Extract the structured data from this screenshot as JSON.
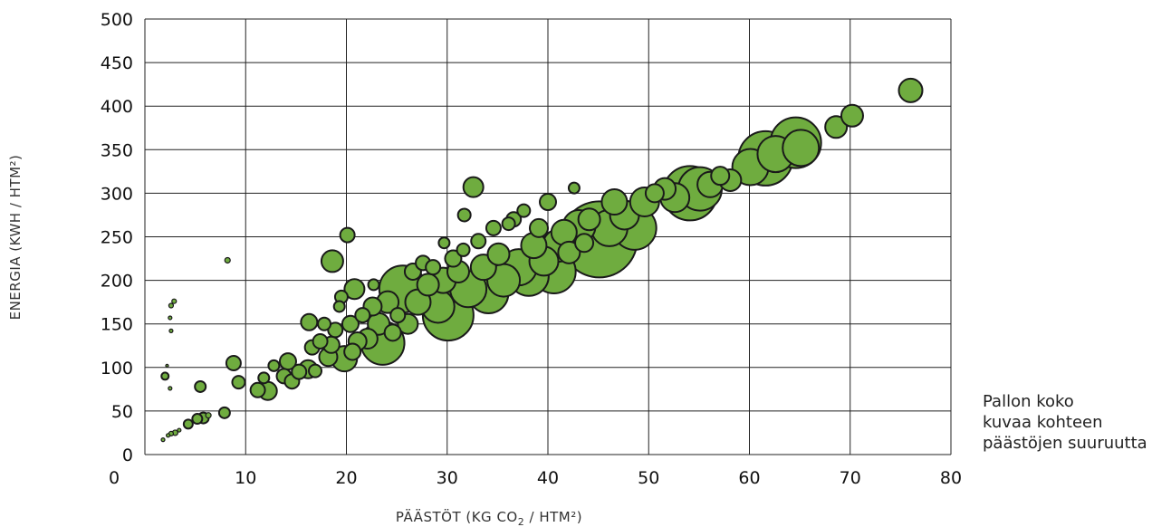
{
  "chart_data": {
    "type": "scatter",
    "title": "",
    "xlabel_main": "PÄÄSTÖT (KG CO",
    "xlabel_sub": "2",
    "xlabel_tail": " / HTM²)",
    "ylabel": "ENERGIA (KWH / HTM²)",
    "xlim": [
      0,
      80
    ],
    "ylim": [
      0,
      500
    ],
    "x_ticks": [
      "0",
      "10",
      "20",
      "30",
      "40",
      "50",
      "60",
      "70",
      "80"
    ],
    "y_ticks": [
      "0",
      "50",
      "100",
      "150",
      "200",
      "250",
      "300",
      "350",
      "400",
      "450",
      "500"
    ],
    "grid": true,
    "size_note": [
      "Pallon koko",
      "kuvaa kohteen",
      "päästöjen suuruutta"
    ],
    "colors": {
      "bubble_fill": "#6fac3f",
      "bubble_stroke": "#1a1a1a",
      "grid": "#222222"
    },
    "series": [
      {
        "points": [
          {
            "x": 1.8,
            "y": 17,
            "s": 2
          },
          {
            "x": 2.3,
            "y": 22,
            "s": 2
          },
          {
            "x": 2.6,
            "y": 24,
            "s": 2.5
          },
          {
            "x": 3.0,
            "y": 25,
            "s": 3
          },
          {
            "x": 3.4,
            "y": 28,
            "s": 2
          },
          {
            "x": 2.0,
            "y": 90,
            "s": 4
          },
          {
            "x": 2.2,
            "y": 102,
            "s": 1.5
          },
          {
            "x": 2.5,
            "y": 76,
            "s": 2
          },
          {
            "x": 2.6,
            "y": 142,
            "s": 2
          },
          {
            "x": 2.5,
            "y": 157,
            "s": 2
          },
          {
            "x": 2.6,
            "y": 171,
            "s": 2.5
          },
          {
            "x": 2.9,
            "y": 176,
            "s": 2.5
          },
          {
            "x": 4.3,
            "y": 35,
            "s": 5
          },
          {
            "x": 5.2,
            "y": 41,
            "s": 5.5
          },
          {
            "x": 5.8,
            "y": 42,
            "s": 6
          },
          {
            "x": 6.3,
            "y": 45,
            "s": 3
          },
          {
            "x": 5.5,
            "y": 78,
            "s": 6
          },
          {
            "x": 7.9,
            "y": 48,
            "s": 6
          },
          {
            "x": 8.2,
            "y": 223,
            "s": 3
          },
          {
            "x": 8.8,
            "y": 105,
            "s": 8
          },
          {
            "x": 9.3,
            "y": 83,
            "s": 7
          },
          {
            "x": 11.2,
            "y": 74,
            "s": 8
          },
          {
            "x": 11.8,
            "y": 88,
            "s": 6
          },
          {
            "x": 12.2,
            "y": 73,
            "s": 10
          },
          {
            "x": 12.8,
            "y": 102,
            "s": 6
          },
          {
            "x": 13.8,
            "y": 90,
            "s": 8
          },
          {
            "x": 14.2,
            "y": 107,
            "s": 9
          },
          {
            "x": 14.6,
            "y": 84,
            "s": 8
          },
          {
            "x": 15.3,
            "y": 95,
            "s": 8
          },
          {
            "x": 16.2,
            "y": 98,
            "s": 10
          },
          {
            "x": 16.3,
            "y": 152,
            "s": 9
          },
          {
            "x": 16.6,
            "y": 123,
            "s": 8
          },
          {
            "x": 16.9,
            "y": 96,
            "s": 7
          },
          {
            "x": 17.4,
            "y": 130,
            "s": 8
          },
          {
            "x": 17.8,
            "y": 150,
            "s": 7
          },
          {
            "x": 18.2,
            "y": 112,
            "s": 10
          },
          {
            "x": 18.5,
            "y": 126,
            "s": 9
          },
          {
            "x": 18.9,
            "y": 143,
            "s": 8
          },
          {
            "x": 18.6,
            "y": 222,
            "s": 12
          },
          {
            "x": 19.3,
            "y": 170,
            "s": 6
          },
          {
            "x": 19.5,
            "y": 181,
            "s": 7
          },
          {
            "x": 19.8,
            "y": 110,
            "s": 14
          },
          {
            "x": 20.1,
            "y": 252,
            "s": 8
          },
          {
            "x": 20.4,
            "y": 150,
            "s": 9
          },
          {
            "x": 20.6,
            "y": 118,
            "s": 9
          },
          {
            "x": 20.8,
            "y": 190,
            "s": 11
          },
          {
            "x": 21.1,
            "y": 130,
            "s": 10
          },
          {
            "x": 21.6,
            "y": 160,
            "s": 8
          },
          {
            "x": 22.1,
            "y": 133,
            "s": 11
          },
          {
            "x": 22.6,
            "y": 170,
            "s": 10
          },
          {
            "x": 22.7,
            "y": 195,
            "s": 6
          },
          {
            "x": 23.2,
            "y": 150,
            "s": 12
          },
          {
            "x": 23.6,
            "y": 128,
            "s": 24
          },
          {
            "x": 24.1,
            "y": 175,
            "s": 12
          },
          {
            "x": 24.6,
            "y": 140,
            "s": 9
          },
          {
            "x": 25.1,
            "y": 160,
            "s": 8
          },
          {
            "x": 25.6,
            "y": 190,
            "s": 26
          },
          {
            "x": 26.1,
            "y": 150,
            "s": 11
          },
          {
            "x": 26.6,
            "y": 210,
            "s": 9
          },
          {
            "x": 27.1,
            "y": 175,
            "s": 14
          },
          {
            "x": 27.6,
            "y": 220,
            "s": 8
          },
          {
            "x": 28.1,
            "y": 195,
            "s": 12
          },
          {
            "x": 28.6,
            "y": 215,
            "s": 8
          },
          {
            "x": 29.1,
            "y": 170,
            "s": 18
          },
          {
            "x": 29.6,
            "y": 200,
            "s": 14
          },
          {
            "x": 30.1,
            "y": 160,
            "s": 28
          },
          {
            "x": 29.7,
            "y": 243,
            "s": 6
          },
          {
            "x": 30.6,
            "y": 225,
            "s": 9
          },
          {
            "x": 31.1,
            "y": 210,
            "s": 12
          },
          {
            "x": 31.6,
            "y": 235,
            "s": 7
          },
          {
            "x": 31.7,
            "y": 275,
            "s": 7
          },
          {
            "x": 32.1,
            "y": 190,
            "s": 20
          },
          {
            "x": 32.6,
            "y": 307,
            "s": 11
          },
          {
            "x": 33.1,
            "y": 245,
            "s": 8
          },
          {
            "x": 33.6,
            "y": 215,
            "s": 14
          },
          {
            "x": 34.1,
            "y": 185,
            "s": 22
          },
          {
            "x": 34.6,
            "y": 260,
            "s": 8
          },
          {
            "x": 35.1,
            "y": 230,
            "s": 12
          },
          {
            "x": 35.6,
            "y": 200,
            "s": 18
          },
          {
            "x": 36.1,
            "y": 265,
            "s": 7
          },
          {
            "x": 36.6,
            "y": 270,
            "s": 8
          },
          {
            "x": 37.1,
            "y": 215,
            "s": 20
          },
          {
            "x": 37.6,
            "y": 280,
            "s": 7
          },
          {
            "x": 38.1,
            "y": 205,
            "s": 22
          },
          {
            "x": 38.6,
            "y": 240,
            "s": 14
          },
          {
            "x": 39.1,
            "y": 260,
            "s": 10
          },
          {
            "x": 39.6,
            "y": 222,
            "s": 16
          },
          {
            "x": 40.0,
            "y": 290,
            "s": 9
          },
          {
            "x": 40.6,
            "y": 210,
            "s": 24
          },
          {
            "x": 41.1,
            "y": 240,
            "s": 18
          },
          {
            "x": 41.6,
            "y": 255,
            "s": 14
          },
          {
            "x": 42.1,
            "y": 232,
            "s": 12
          },
          {
            "x": 42.6,
            "y": 306,
            "s": 6
          },
          {
            "x": 43.1,
            "y": 262,
            "s": 18
          },
          {
            "x": 43.6,
            "y": 243,
            "s": 10
          },
          {
            "x": 44.1,
            "y": 270,
            "s": 12
          },
          {
            "x": 45.1,
            "y": 247,
            "s": 42
          },
          {
            "x": 46.1,
            "y": 260,
            "s": 20
          },
          {
            "x": 46.6,
            "y": 290,
            "s": 14
          },
          {
            "x": 47.6,
            "y": 275,
            "s": 16
          },
          {
            "x": 48.6,
            "y": 260,
            "s": 24
          },
          {
            "x": 49.6,
            "y": 290,
            "s": 16
          },
          {
            "x": 50.6,
            "y": 300,
            "s": 10
          },
          {
            "x": 51.6,
            "y": 305,
            "s": 12
          },
          {
            "x": 52.6,
            "y": 295,
            "s": 16
          },
          {
            "x": 54.1,
            "y": 300,
            "s": 30
          },
          {
            "x": 55.1,
            "y": 305,
            "s": 24
          },
          {
            "x": 56.1,
            "y": 310,
            "s": 14
          },
          {
            "x": 57.1,
            "y": 320,
            "s": 10
          },
          {
            "x": 58.1,
            "y": 315,
            "s": 12
          },
          {
            "x": 60.1,
            "y": 330,
            "s": 20
          },
          {
            "x": 61.6,
            "y": 340,
            "s": 30
          },
          {
            "x": 62.6,
            "y": 345,
            "s": 20
          },
          {
            "x": 64.6,
            "y": 358,
            "s": 28
          },
          {
            "x": 65.1,
            "y": 352,
            "s": 20
          },
          {
            "x": 68.6,
            "y": 376,
            "s": 12
          },
          {
            "x": 70.2,
            "y": 389,
            "s": 12
          },
          {
            "x": 76.0,
            "y": 418,
            "s": 13
          }
        ]
      }
    ]
  }
}
